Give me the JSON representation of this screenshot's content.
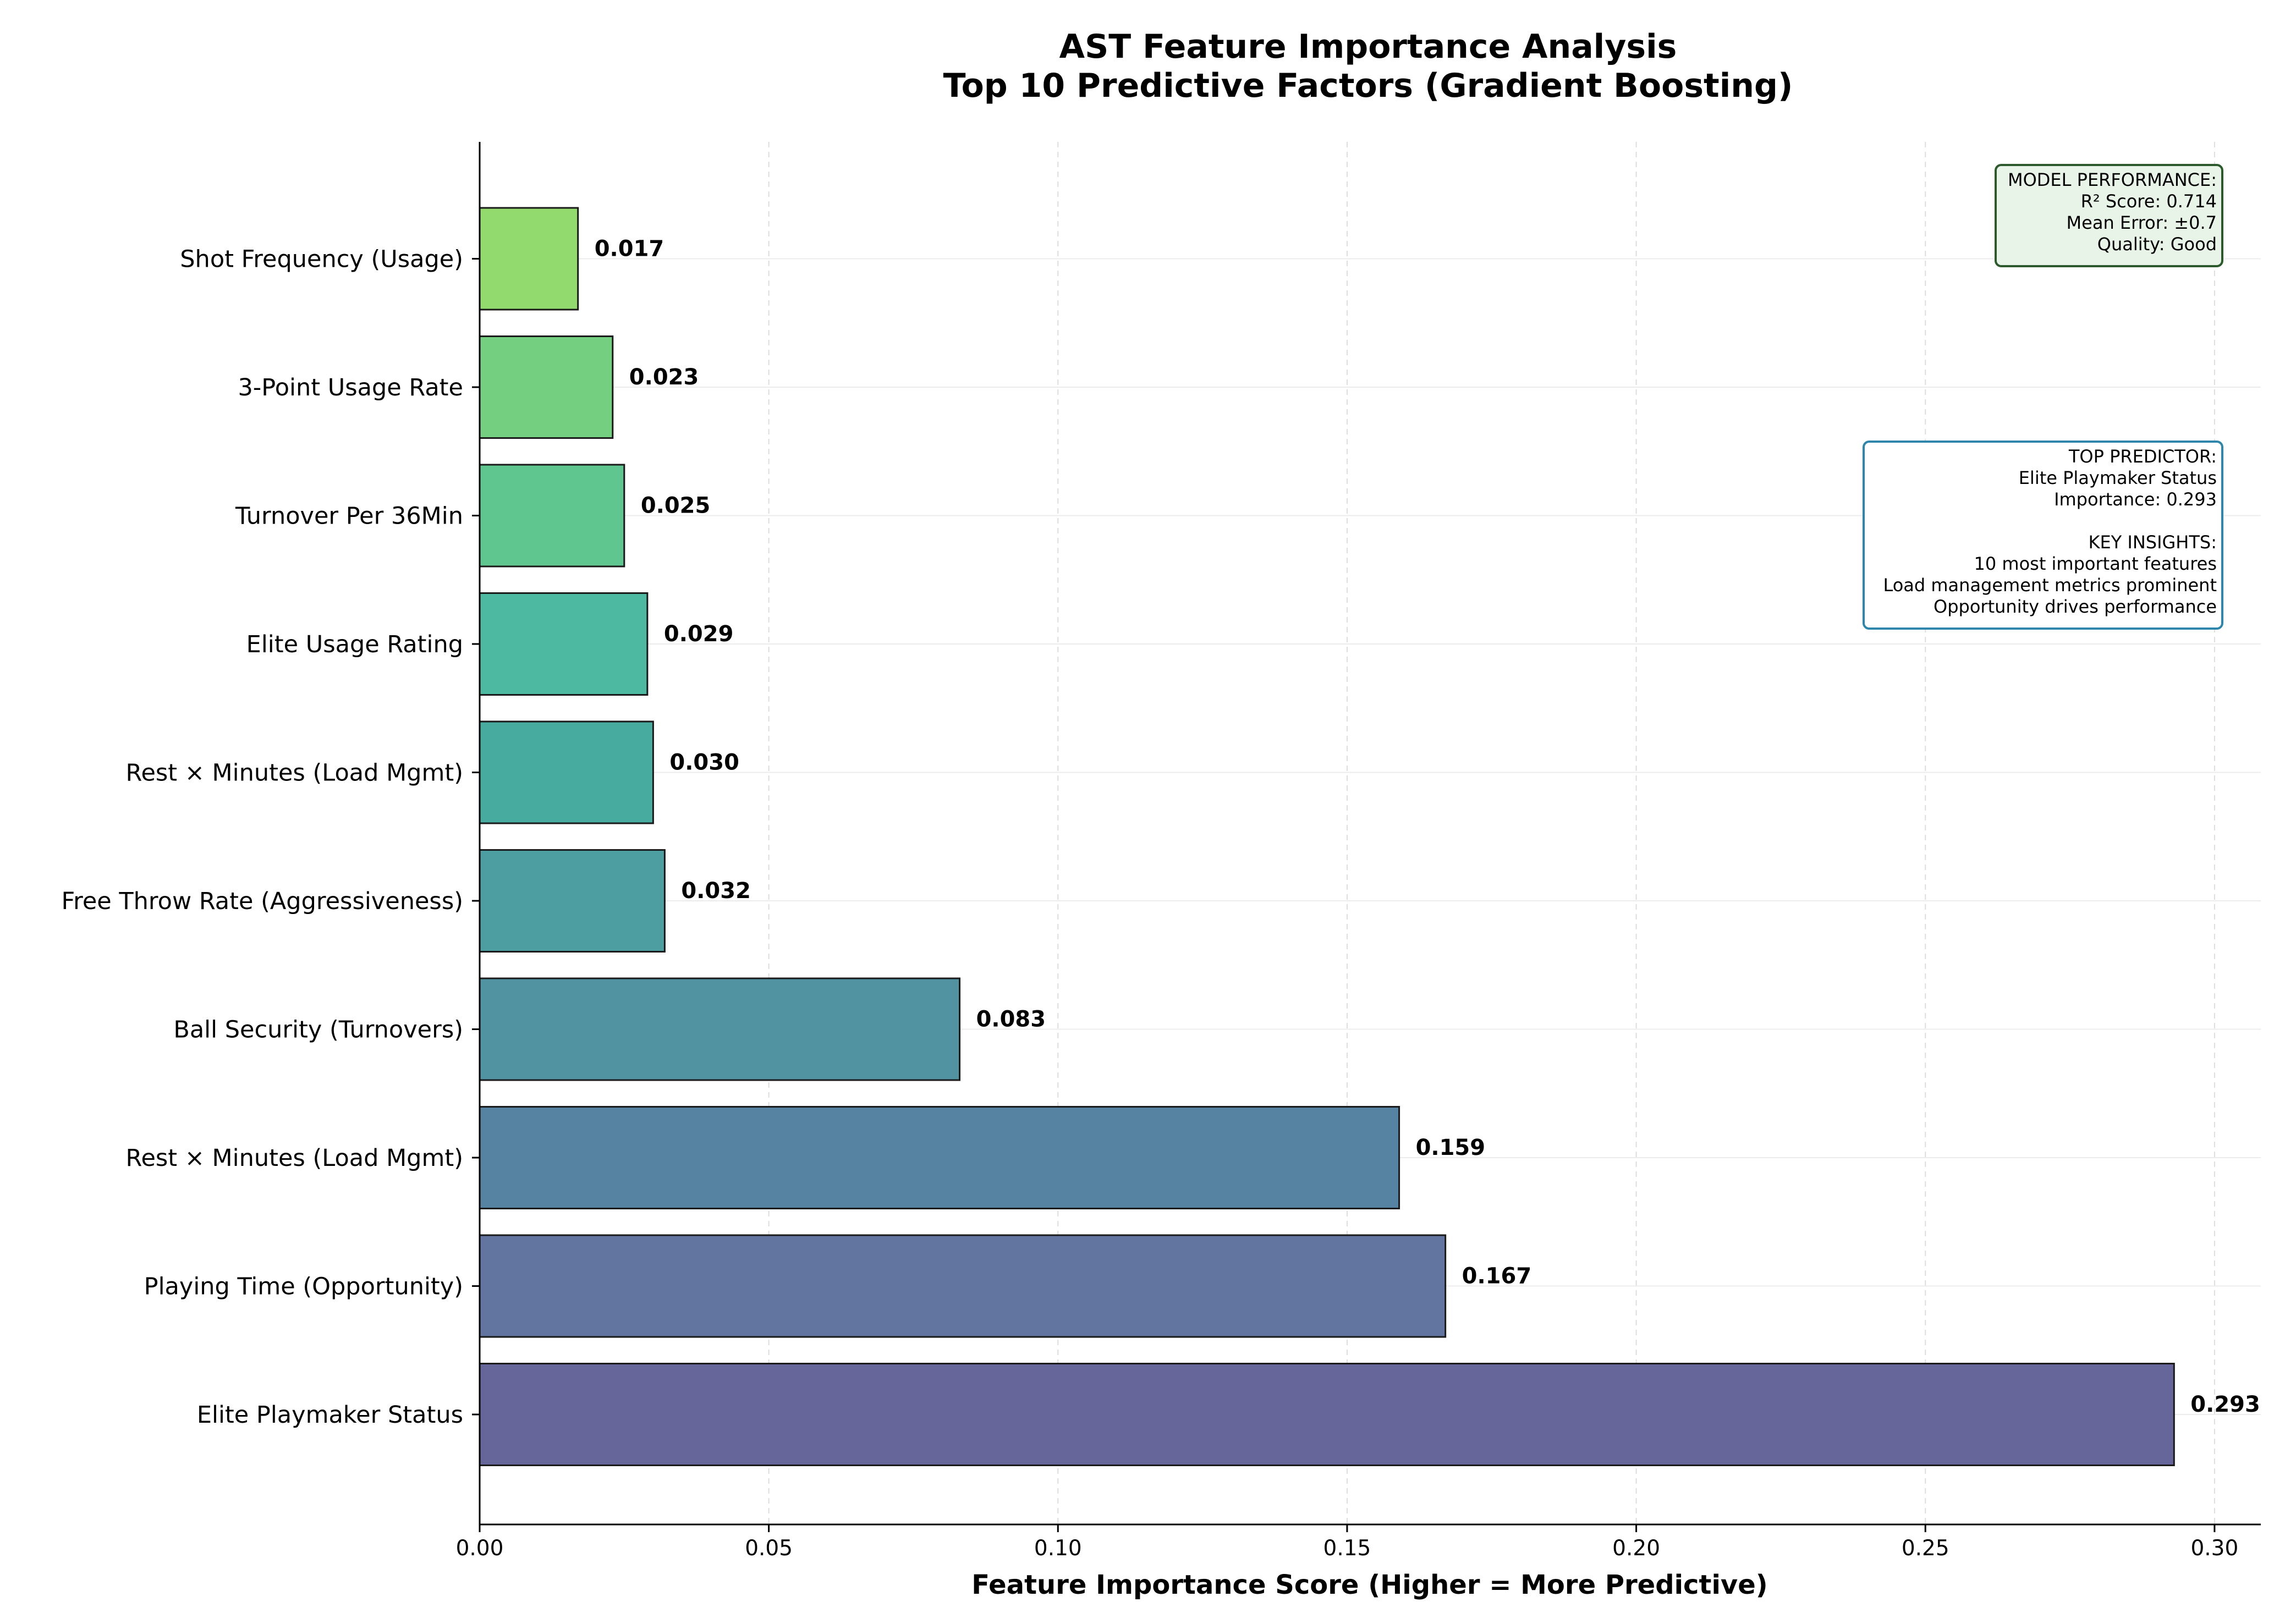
{
  "chart_data": {
    "type": "bar",
    "orientation": "horizontal",
    "title": "AST Feature Importance Analysis",
    "subtitle": "Top 10 Predictive Factors (Gradient Boosting)",
    "xlabel": "Feature Importance Score (Higher = More Predictive)",
    "ylabel": "",
    "xlim": [
      0,
      0.308
    ],
    "xticks": [
      0.0,
      0.05,
      0.1,
      0.15,
      0.2,
      0.25,
      0.3
    ],
    "xtick_labels": [
      "0.00",
      "0.05",
      "0.10",
      "0.15",
      "0.20",
      "0.25",
      "0.30"
    ],
    "grid": true,
    "categories": [
      "Elite Playmaker Status",
      "Playing Time (Opportunity)",
      "Rest × Minutes (Load Mgmt)",
      "Ball Security (Turnovers)",
      "Free Throw Rate (Aggressiveness)",
      "Rest × Minutes (Load Mgmt)",
      "Elite Usage Rating",
      "Turnover Per 36Min",
      "3-Point Usage Rate",
      "Shot Frequency (Usage)"
    ],
    "values": [
      0.293,
      0.167,
      0.159,
      0.083,
      0.032,
      0.03,
      0.029,
      0.025,
      0.023,
      0.017
    ],
    "value_labels": [
      "0.293",
      "0.167",
      "0.159",
      "0.083",
      "0.032",
      "0.030",
      "0.029",
      "0.025",
      "0.023",
      "0.017"
    ],
    "colors": [
      "#67669a",
      "#6175a0",
      "#5683a1",
      "#5293a2",
      "#4c9ea0",
      "#47aba0",
      "#4cb9a0",
      "#5fc68f",
      "#74cf80",
      "#93da6e"
    ],
    "annotations": [
      {
        "name": "model-performance-box",
        "placement": "top-right",
        "border": "#2d5a2d",
        "background": "#e8f4e8",
        "lines": [
          "MODEL PERFORMANCE:",
          "R² Score: 0.714",
          "Mean Error: ±0.7",
          "Quality: Good"
        ]
      },
      {
        "name": "top-predictor-box",
        "placement": "upper-right",
        "border": "#2e86ab",
        "background": "#ffffff",
        "lines": [
          "TOP PREDICTOR:",
          "Elite Playmaker Status",
          "Importance: 0.293",
          "",
          "KEY INSIGHTS:",
          "10 most important features",
          "Load management metrics prominent",
          "Opportunity drives performance"
        ]
      }
    ]
  }
}
